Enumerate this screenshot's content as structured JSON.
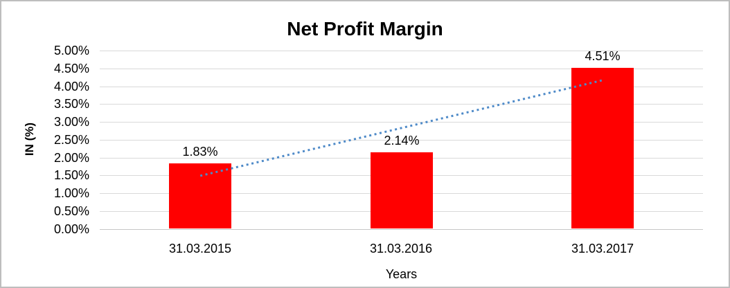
{
  "chart_data": {
    "type": "bar",
    "title": "Net Profit Margin",
    "ylabel": "IN (%)",
    "xlabel": "Years",
    "categories": [
      "31.03.2015",
      "31.03.2016",
      "31.03.2017"
    ],
    "values": [
      1.83,
      2.14,
      4.51
    ],
    "value_labels": [
      "1.83%",
      "2.14%",
      "4.51%"
    ],
    "ylim": [
      0,
      5
    ],
    "ytick_step": 0.5,
    "ytick_labels": [
      "5.00%",
      "4.50%",
      "4.00%",
      "3.50%",
      "3.00%",
      "2.50%",
      "2.00%",
      "1.50%",
      "1.00%",
      "0.50%",
      "0.00%"
    ],
    "grid": true,
    "legend": "none",
    "bar_color": "#FF0000",
    "trendline": {
      "type": "linear",
      "color": "#4E8AC8",
      "style": "dotted"
    },
    "colors": {
      "gridline": "#D9D9D9",
      "axis_line": "#C6C6C6",
      "text": "#000000",
      "background": "#FFFFFF",
      "border": "#BDBDBD"
    }
  }
}
